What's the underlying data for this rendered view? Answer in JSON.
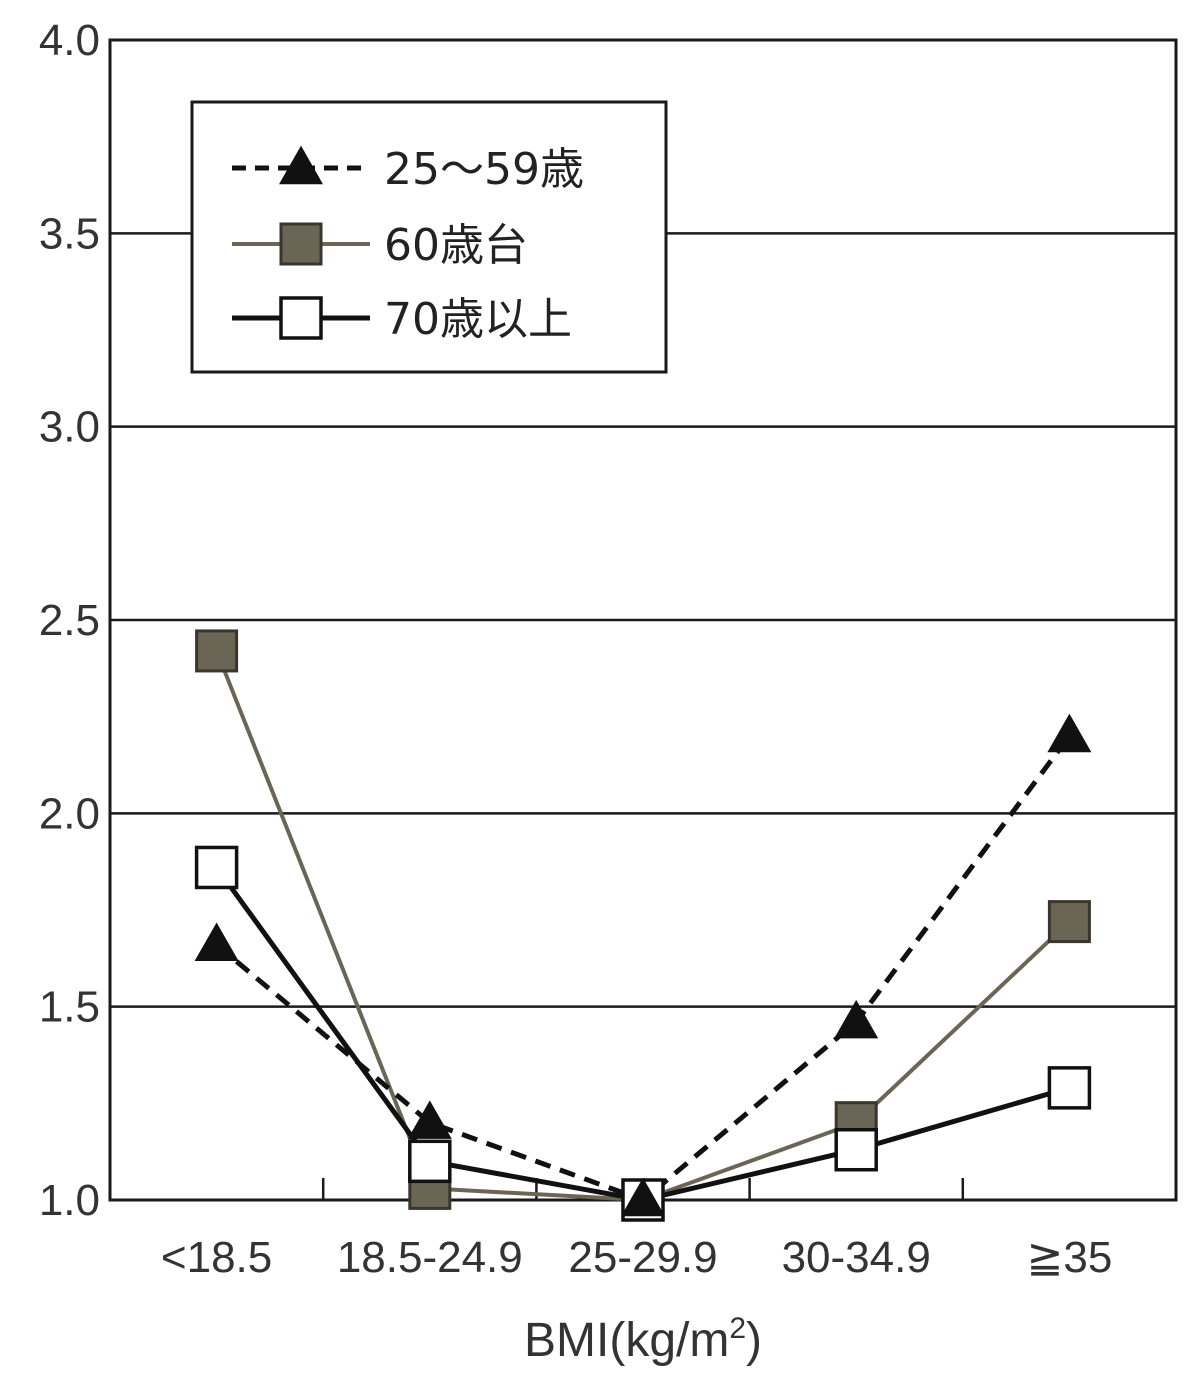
{
  "chart_data": {
    "type": "line",
    "xlabel_main": "BMI",
    "xlabel_unit": "(kg/m",
    "xlabel_sup": "2",
    "xlabel_close": ")",
    "ylabel": "",
    "ylim": [
      1.0,
      4.0
    ],
    "yticks": [
      "1.0",
      "1.5",
      "2.0",
      "2.5",
      "3.0",
      "3.5",
      "4.0"
    ],
    "ytick_values": [
      1.0,
      1.5,
      2.0,
      2.5,
      3.0,
      3.5,
      4.0
    ],
    "categories": [
      "<18.5",
      "18.5-24.9",
      "25-29.9",
      "30-34.9",
      "≧35"
    ],
    "grid": true,
    "legend_position": "top-left",
    "series": [
      {
        "name": "25〜59歳",
        "values": [
          1.66,
          1.2,
          1.0,
          1.46,
          2.2
        ],
        "marker": "triangle",
        "line_style": "dashed",
        "color": "#111111"
      },
      {
        "name": "60歳台",
        "values": [
          2.42,
          1.03,
          1.0,
          1.2,
          1.72
        ],
        "marker": "square-filled",
        "line_style": "solid",
        "color": "#6b6555"
      },
      {
        "name": "70歳以上",
        "values": [
          1.86,
          1.1,
          1.0,
          1.13,
          1.29
        ],
        "marker": "square-open",
        "line_style": "solid",
        "color": "#111111"
      }
    ]
  }
}
